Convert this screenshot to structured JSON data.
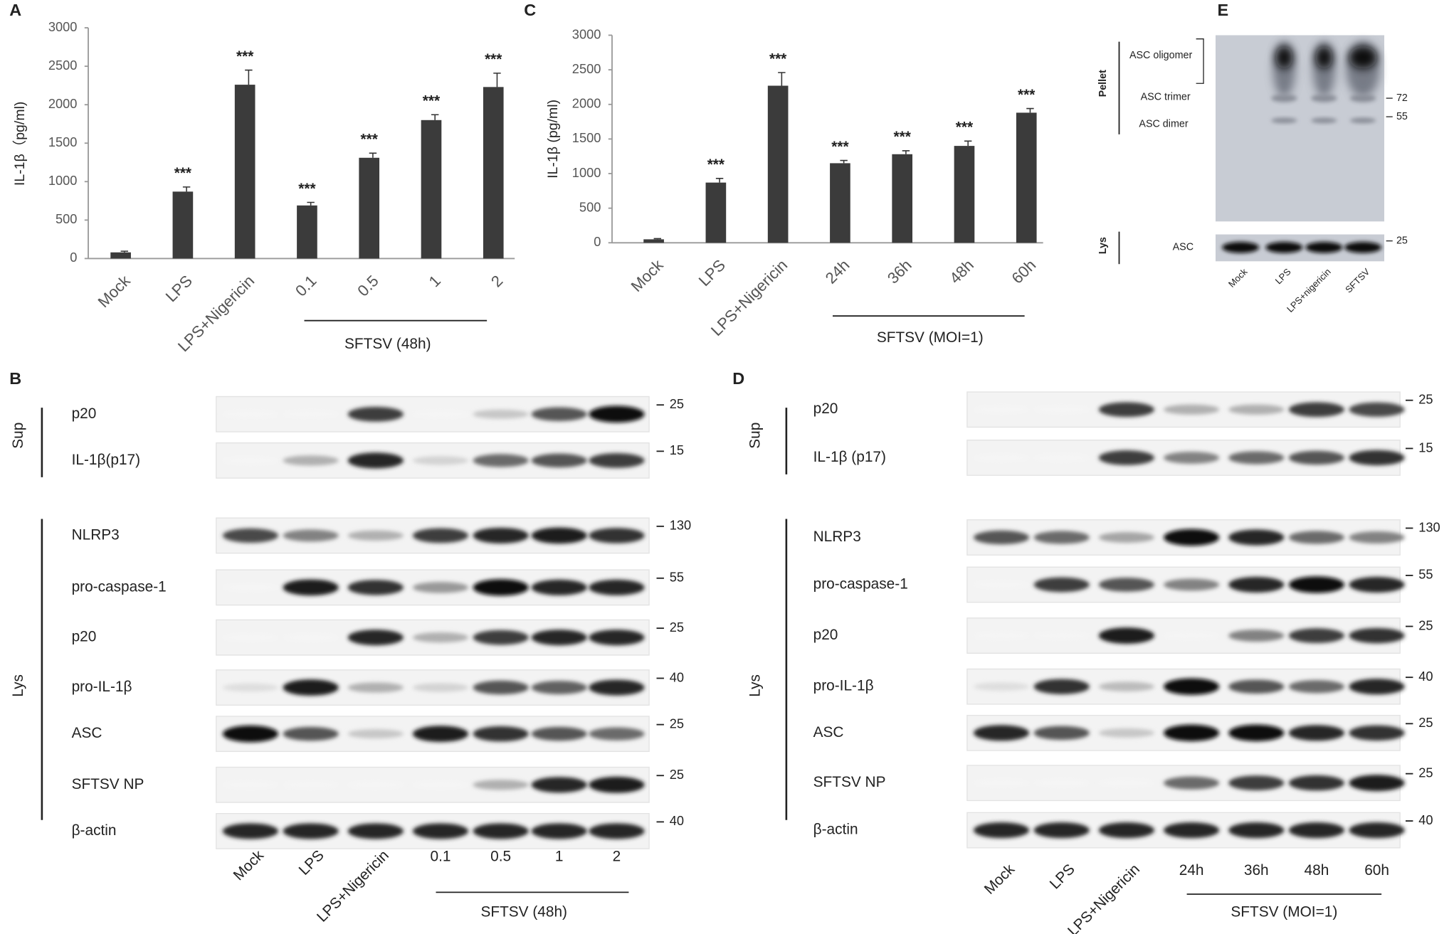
{
  "chart_data": [
    {
      "type": "bar",
      "panel": "A",
      "y_label": "IL-1β（pg/ml)",
      "categories": [
        "Mock",
        "LPS",
        "LPS+Nigericin",
        "0.1",
        "0.5",
        "1",
        "2"
      ],
      "values": [
        80,
        870,
        2260,
        690,
        1310,
        1800,
        2230
      ],
      "errors": [
        15,
        60,
        190,
        40,
        60,
        70,
        180
      ],
      "significance": [
        null,
        "***",
        "***",
        "***",
        "***",
        "***",
        "***"
      ],
      "group_label": "SFTSV (48h)",
      "color": "#3b3b3b",
      "ylim": [
        0,
        3000
      ],
      "yticks": [
        0,
        500,
        1000,
        1500,
        2000,
        2500,
        3000
      ]
    },
    {
      "type": "bar",
      "panel": "C",
      "y_label": "IL-1β (pg/ml)",
      "categories": [
        "Mock",
        "LPS",
        "LPS+Nigericin",
        "24h",
        "36h",
        "48h",
        "60h"
      ],
      "values": [
        50,
        870,
        2270,
        1150,
        1280,
        1400,
        1880
      ],
      "errors": [
        10,
        60,
        190,
        40,
        50,
        70,
        60
      ],
      "significance": [
        null,
        "***",
        "***",
        "***",
        "***",
        "***",
        "***"
      ],
      "group_label": "SFTSV (MOI=1)",
      "color": "#3b3b3b",
      "ylim": [
        0,
        3000
      ],
      "yticks": [
        0,
        500,
        1000,
        1500,
        2000,
        2500,
        3000
      ]
    }
  ],
  "blots": [
    {
      "panel": "B",
      "sections": [
        "Sup",
        "Lys"
      ],
      "lanes": [
        "Mock",
        "LPS",
        "LPS+Nigericin",
        "0.1",
        "0.5",
        "1",
        "2"
      ],
      "group_label": "SFTSV (48h)",
      "rows": [
        {
          "name": "p20",
          "marker": "25",
          "intensity": [
            0,
            0,
            0.8,
            0,
            0.2,
            0.7,
            1
          ]
        },
        {
          "name": "IL-1β(p17)",
          "marker": "15",
          "intensity": [
            0,
            0.3,
            0.9,
            0.15,
            0.6,
            0.7,
            0.8
          ]
        },
        {
          "name": "NLRP3",
          "marker": "130",
          "intensity": [
            0.75,
            0.5,
            0.3,
            0.8,
            0.9,
            0.95,
            0.85
          ]
        },
        {
          "name": "pro-caspase-1",
          "marker": "55",
          "intensity": [
            0,
            0.95,
            0.85,
            0.4,
            1,
            0.9,
            0.9
          ]
        },
        {
          "name": "p20",
          "marker": "25",
          "intensity": [
            0,
            0,
            0.9,
            0.3,
            0.8,
            0.9,
            0.9
          ]
        },
        {
          "name": "pro-IL-1β",
          "marker": "40",
          "intensity": [
            0.1,
            0.95,
            0.3,
            0.15,
            0.7,
            0.65,
            0.9
          ]
        },
        {
          "name": "ASC",
          "marker": "25",
          "intensity": [
            1,
            0.7,
            0.2,
            0.95,
            0.85,
            0.7,
            0.6
          ]
        },
        {
          "name": "SFTSV NP",
          "marker": "25",
          "intensity": [
            0,
            0,
            0,
            0,
            0.3,
            0.9,
            0.95
          ]
        },
        {
          "name": "β-actin",
          "marker": "40",
          "intensity": [
            0.9,
            0.9,
            0.9,
            0.9,
            0.9,
            0.9,
            0.9
          ]
        }
      ]
    },
    {
      "panel": "D",
      "sections": [
        "Sup",
        "Lys"
      ],
      "lanes": [
        "Mock",
        "LPS",
        "LPS+Nigericin",
        "24h",
        "36h",
        "48h",
        "60h"
      ],
      "group_label": "SFTSV (MOI=1)",
      "rows": [
        {
          "name": "p20",
          "marker": "25",
          "intensity": [
            0,
            0,
            0.8,
            0.3,
            0.3,
            0.8,
            0.75
          ]
        },
        {
          "name": "IL-1β (p17)",
          "marker": "15",
          "intensity": [
            0,
            0,
            0.8,
            0.5,
            0.6,
            0.7,
            0.85
          ]
        },
        {
          "name": "NLRP3",
          "marker": "130",
          "intensity": [
            0.7,
            0.6,
            0.35,
            1,
            0.9,
            0.6,
            0.5
          ]
        },
        {
          "name": "pro-caspase-1",
          "marker": "55",
          "intensity": [
            0,
            0.8,
            0.7,
            0.5,
            0.9,
            1,
            0.9
          ]
        },
        {
          "name": "p20",
          "marker": "25",
          "intensity": [
            0,
            0,
            0.95,
            0,
            0.5,
            0.8,
            0.85
          ]
        },
        {
          "name": "pro-IL-1β",
          "marker": "40",
          "intensity": [
            0.1,
            0.85,
            0.25,
            1,
            0.7,
            0.6,
            0.9
          ]
        },
        {
          "name": "ASC",
          "marker": "25",
          "intensity": [
            0.9,
            0.7,
            0.2,
            1,
            1,
            0.9,
            0.85
          ]
        },
        {
          "name": "SFTSV NP",
          "marker": "25",
          "intensity": [
            0,
            0,
            0,
            0.6,
            0.8,
            0.85,
            0.95
          ]
        },
        {
          "name": "β-actin",
          "marker": "40",
          "intensity": [
            0.9,
            0.9,
            0.9,
            0.9,
            0.9,
            0.9,
            0.9
          ]
        }
      ]
    }
  ],
  "panel_e": {
    "panel": "E",
    "pellet_label": "Pellet",
    "species": [
      "ASC oligomer",
      "ASC trimer",
      "ASC dimer"
    ],
    "markers": [
      "72",
      "55"
    ],
    "lys_label": "Lys",
    "lys_row": "ASC",
    "lys_marker": "25",
    "lanes": [
      "Mock",
      "LPS",
      "LPS+nigericin",
      "SFTSV"
    ]
  }
}
